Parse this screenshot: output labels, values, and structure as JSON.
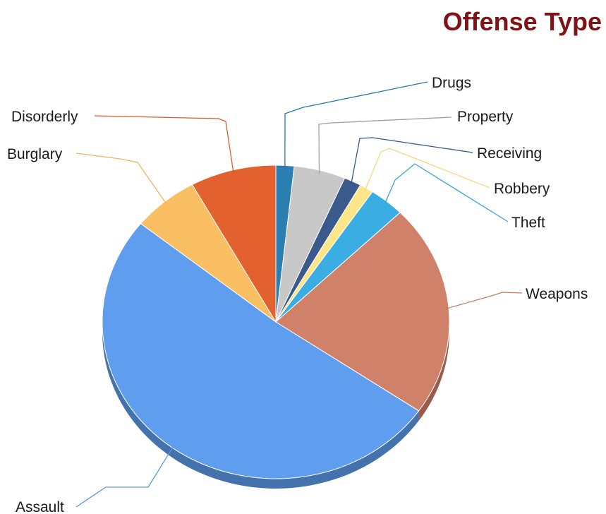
{
  "chart_data": {
    "type": "pie",
    "title": "Offense Type",
    "start_angle_deg": 0,
    "slices": [
      {
        "label": "Drugs",
        "value": 1.7,
        "color": "#2a7fb0"
      },
      {
        "label": "Property",
        "value": 4.8,
        "color": "#c8c8c8"
      },
      {
        "label": "Receiving",
        "value": 1.6,
        "color": "#3a5a8c"
      },
      {
        "label": "Robbery",
        "value": 1.3,
        "color": "#fde68a"
      },
      {
        "label": "Theft",
        "value": 3.3,
        "color": "#3aaee3"
      },
      {
        "label": "Weapons",
        "value": 21.9,
        "color": "#d0816a"
      },
      {
        "label": "Assault",
        "value": 51.2,
        "color": "#5f9eef"
      },
      {
        "label": "Burglary",
        "value": 6.2,
        "color": "#fbbf63"
      },
      {
        "label": "Disorderly",
        "value": 8.0,
        "color": "#e2612f"
      }
    ]
  }
}
